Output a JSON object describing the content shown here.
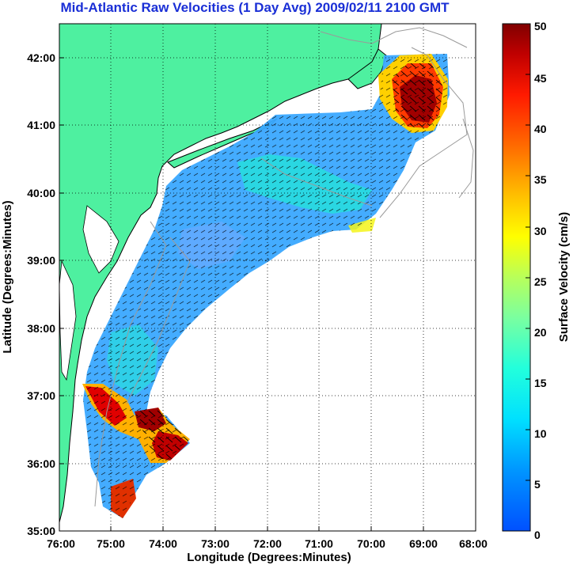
{
  "title": "Mid-Atlantic Raw Velocities (1 Day Avg) 2009/02/11 2100 GMT",
  "xlabel": "Longitude (Degrees:Minutes)",
  "ylabel": "Latitude (Degrees:Minutes)",
  "x_ticks": [
    "76:00",
    "75:00",
    "74:00",
    "73:00",
    "72:00",
    "71:00",
    "70:00",
    "69:00",
    "68:00"
  ],
  "y_ticks": [
    "35:00",
    "36:00",
    "37:00",
    "38:00",
    "39:00",
    "40:00",
    "41:00",
    "42:00"
  ],
  "colorbar": {
    "label": "Surface Velocity (cm/s)",
    "ticks": [
      "0",
      "5",
      "10",
      "15",
      "20",
      "25",
      "30",
      "35",
      "40",
      "45",
      "50"
    ],
    "min": 0,
    "max": 50,
    "colormap": "jet"
  },
  "colors": {
    "land": "#4ef0a0",
    "title": "#1a2fd6",
    "ocean": "#ffffff",
    "grid": "#000000",
    "bathymetry": "#9a9a9a"
  },
  "map": {
    "lon_range": [
      -76,
      -68
    ],
    "lat_range": [
      35,
      42.5
    ],
    "grid": true
  }
}
